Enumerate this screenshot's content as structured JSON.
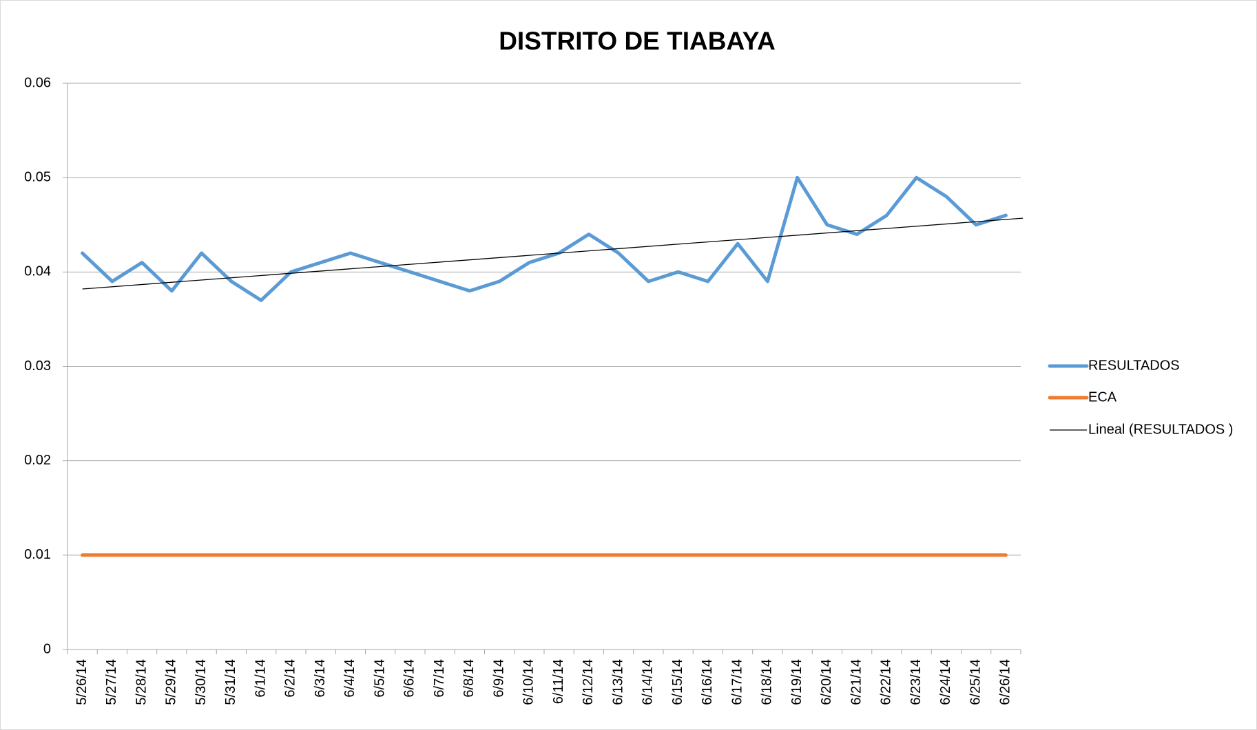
{
  "chart_data": {
    "type": "line",
    "title": "DISTRITO DE TIABAYA",
    "categories": [
      "5/26/14",
      "5/27/14",
      "5/28/14",
      "5/29/14",
      "5/30/14",
      "5/31/14",
      "6/1/14",
      "6/2/14",
      "6/3/14",
      "6/4/14",
      "6/5/14",
      "6/6/14",
      "6/7/14",
      "6/8/14",
      "6/9/14",
      "6/10/14",
      "6/11/14",
      "6/12/14",
      "6/13/14",
      "6/14/14",
      "6/15/14",
      "6/16/14",
      "6/17/14",
      "6/18/14",
      "6/19/14",
      "6/20/14",
      "6/21/14",
      "6/22/14",
      "6/23/14",
      "6/24/14",
      "6/25/14",
      "6/26/14"
    ],
    "series": [
      {
        "name": "RESULTADOS",
        "color": "#5b9bd5",
        "values": [
          0.042,
          0.039,
          0.041,
          0.038,
          0.042,
          0.039,
          0.037,
          0.04,
          0.041,
          0.042,
          0.041,
          0.04,
          0.039,
          0.038,
          0.039,
          0.041,
          0.042,
          0.044,
          0.042,
          0.039,
          0.04,
          0.039,
          0.043,
          0.039,
          0.05,
          0.045,
          0.044,
          0.046,
          0.05,
          0.048,
          0.045,
          0.046
        ]
      },
      {
        "name": "ECA",
        "color": "#ed7d31",
        "values": [
          0.01,
          0.01,
          0.01,
          0.01,
          0.01,
          0.01,
          0.01,
          0.01,
          0.01,
          0.01,
          0.01,
          0.01,
          0.01,
          0.01,
          0.01,
          0.01,
          0.01,
          0.01,
          0.01,
          0.01,
          0.01,
          0.01,
          0.01,
          0.01,
          0.01,
          0.01,
          0.01,
          0.01,
          0.01,
          0.01,
          0.01,
          0.01
        ]
      }
    ],
    "trendline": {
      "name": "Lineal (RESULTADOS )",
      "color": "#000000",
      "start": 0.0382,
      "end": 0.0457
    },
    "ylim": [
      0,
      0.06
    ],
    "yticks": [
      0,
      0.01,
      0.02,
      0.03,
      0.04,
      0.05,
      0.06
    ],
    "grid": true,
    "legend": "right"
  }
}
